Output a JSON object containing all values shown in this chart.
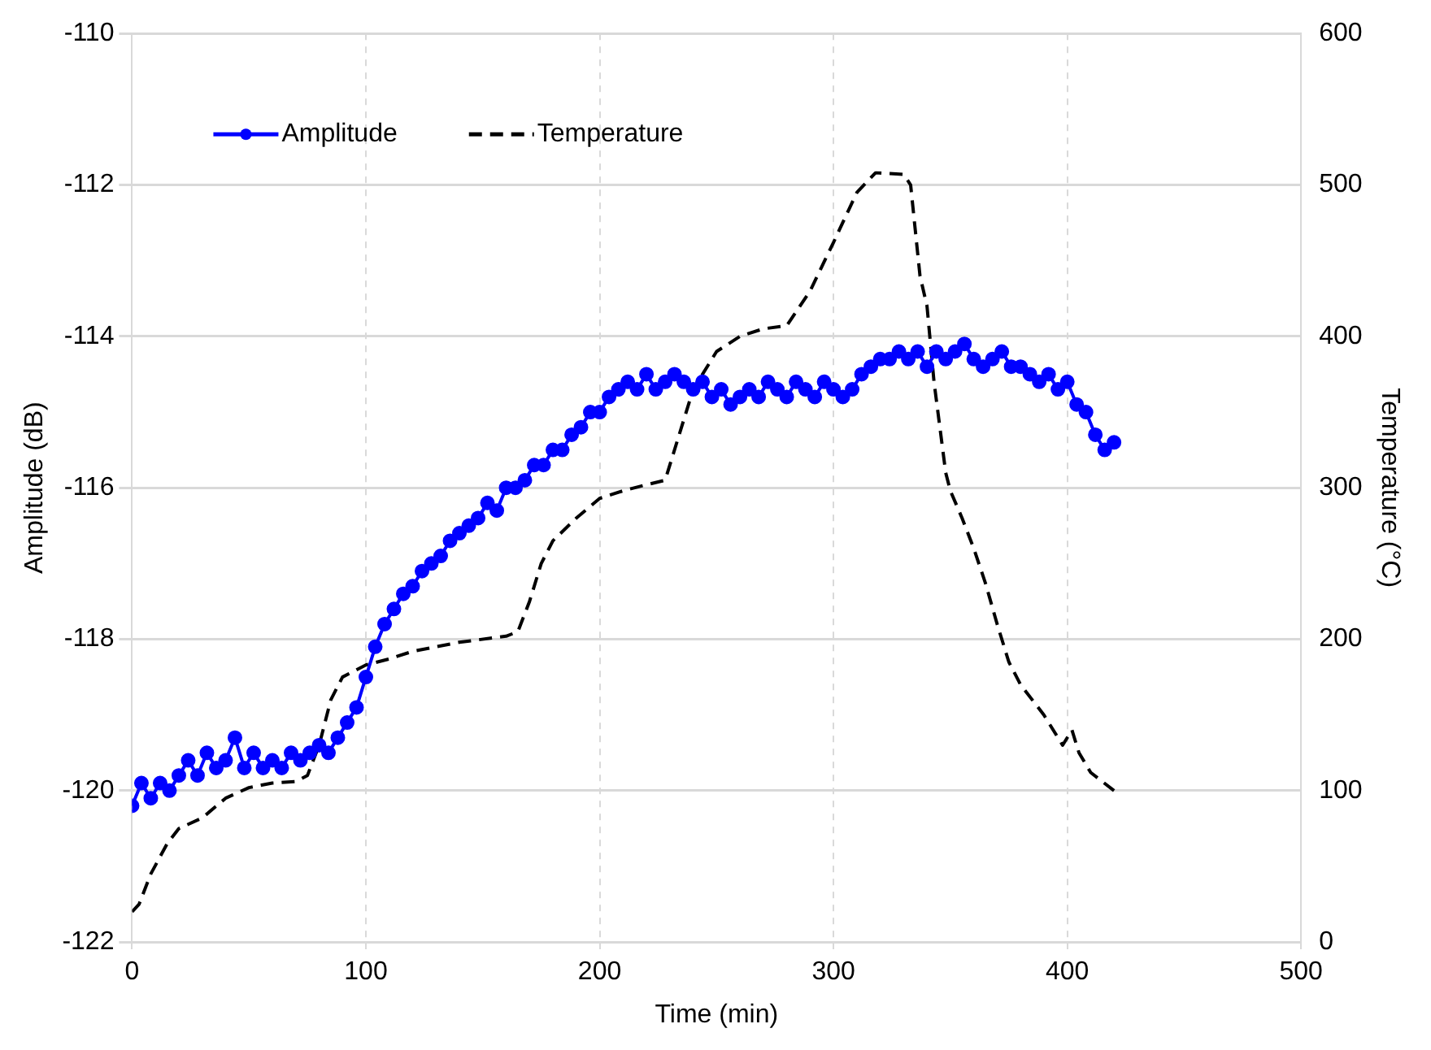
{
  "chart_data": {
    "type": "line",
    "xlabel": "Time (min)",
    "ylabel": "Amplitude (dB)",
    "y2label": "Temperature (°C)",
    "xlim": [
      0,
      500
    ],
    "xticks": [
      0,
      100,
      200,
      300,
      400,
      500
    ],
    "ylim": [
      -122,
      -110
    ],
    "yticks": [
      -122,
      -120,
      -118,
      -116,
      -114,
      -112,
      -110
    ],
    "y2lim": [
      0,
      600
    ],
    "y2ticks": [
      0,
      100,
      200,
      300,
      400,
      500,
      600
    ],
    "grid": true,
    "legend": "top left",
    "series": [
      {
        "name": "Amplitude",
        "color": "#0000ff",
        "marker": "circle",
        "line_style": "solid",
        "x": [
          0,
          4,
          8,
          12,
          16,
          20,
          24,
          28,
          32,
          36,
          40,
          44,
          48,
          52,
          56,
          60,
          64,
          68,
          72,
          76,
          80,
          84,
          88,
          92,
          96,
          100,
          104,
          108,
          112,
          116,
          120,
          124,
          128,
          132,
          136,
          140,
          144,
          148,
          152,
          156,
          160,
          164,
          168,
          172,
          176,
          180,
          184,
          188,
          192,
          196,
          200,
          204,
          208,
          212,
          216,
          220,
          224,
          228,
          232,
          236,
          240,
          244,
          248,
          252,
          256,
          260,
          264,
          268,
          272,
          276,
          280,
          284,
          288,
          292,
          296,
          300,
          304,
          308,
          312,
          316,
          320,
          324,
          328,
          332,
          336,
          340,
          344,
          348,
          352,
          356,
          360,
          364,
          368,
          372,
          376,
          380,
          384,
          388,
          392,
          396,
          400,
          404,
          408,
          412,
          416,
          420
        ],
        "values": [
          -120.2,
          -119.9,
          -120.1,
          -119.9,
          -120.0,
          -119.8,
          -119.6,
          -119.8,
          -119.5,
          -119.7,
          -119.6,
          -119.3,
          -119.7,
          -119.5,
          -119.7,
          -119.6,
          -119.7,
          -119.5,
          -119.6,
          -119.5,
          -119.4,
          -119.5,
          -119.3,
          -119.1,
          -118.9,
          -118.5,
          -118.1,
          -117.8,
          -117.6,
          -117.4,
          -117.3,
          -117.1,
          -117.0,
          -116.9,
          -116.7,
          -116.6,
          -116.5,
          -116.4,
          -116.2,
          -116.3,
          -116.0,
          -116.0,
          -115.9,
          -115.7,
          -115.7,
          -115.5,
          -115.5,
          -115.3,
          -115.2,
          -115.0,
          -115.0,
          -114.8,
          -114.7,
          -114.6,
          -114.7,
          -114.5,
          -114.7,
          -114.6,
          -114.5,
          -114.6,
          -114.7,
          -114.6,
          -114.8,
          -114.7,
          -114.9,
          -114.8,
          -114.7,
          -114.8,
          -114.6,
          -114.7,
          -114.8,
          -114.6,
          -114.7,
          -114.8,
          -114.6,
          -114.7,
          -114.8,
          -114.7,
          -114.5,
          -114.4,
          -114.3,
          -114.3,
          -114.2,
          -114.3,
          -114.2,
          -114.4,
          -114.2,
          -114.3,
          -114.2,
          -114.1,
          -114.3,
          -114.4,
          -114.3,
          -114.2,
          -114.4,
          -114.4,
          -114.5,
          -114.6,
          -114.5,
          -114.7,
          -114.6,
          -114.9,
          -115.0,
          -115.3,
          -115.5,
          -115.4
        ]
      },
      {
        "name": "Temperature",
        "axis": "y2",
        "color": "#000000",
        "marker": "none",
        "line_style": "dashed",
        "x": [
          0,
          3,
          8,
          15,
          20,
          30,
          40,
          50,
          60,
          70,
          75,
          80,
          85,
          90,
          100,
          110,
          120,
          140,
          160,
          165,
          170,
          175,
          180,
          190,
          200,
          210,
          220,
          228,
          235,
          240,
          250,
          260,
          270,
          280,
          290,
          300,
          310,
          318,
          330,
          333,
          337,
          340,
          343,
          348,
          350,
          355,
          360,
          365,
          370,
          375,
          380,
          390,
          398,
          402,
          405,
          410,
          420
        ],
        "values": [
          20,
          25,
          45,
          65,
          75,
          82,
          95,
          102,
          105,
          106,
          110,
          130,
          160,
          175,
          183,
          187,
          192,
          198,
          202,
          205,
          225,
          250,
          265,
          280,
          293,
          298,
          302,
          305,
          340,
          365,
          390,
          400,
          405,
          407,
          430,
          462,
          495,
          508,
          507,
          500,
          440,
          420,
          370,
          310,
          298,
          280,
          260,
          237,
          210,
          185,
          170,
          150,
          130,
          140,
          125,
          112,
          100
        ]
      }
    ]
  }
}
